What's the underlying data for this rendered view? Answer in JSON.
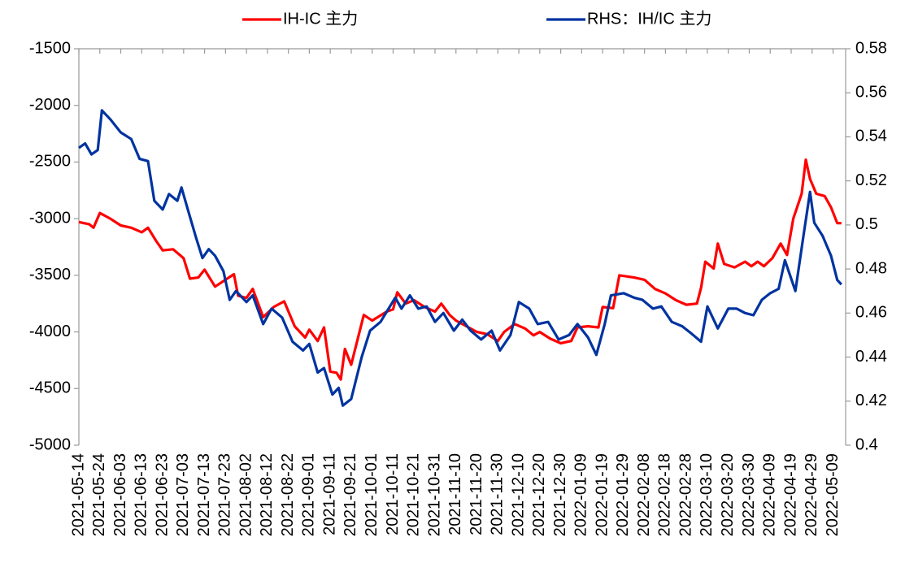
{
  "chart_data": {
    "type": "line",
    "legend_position": "top",
    "xlim": [
      "2021-05-14",
      "2022-05-15"
    ],
    "xticks": [
      "2021-05-14",
      "2021-05-24",
      "2021-06-03",
      "2021-06-13",
      "2021-06-23",
      "2021-07-03",
      "2021-07-13",
      "2021-07-23",
      "2021-08-02",
      "2021-08-12",
      "2021-08-22",
      "2021-09-01",
      "2021-09-11",
      "2021-09-21",
      "2021-10-01",
      "2021-10-11",
      "2021-10-21",
      "2021-10-31",
      "2021-11-10",
      "2021-11-20",
      "2021-11-30",
      "2021-12-10",
      "2021-12-20",
      "2021-12-30",
      "2022-01-09",
      "2022-01-19",
      "2022-01-29",
      "2022-02-08",
      "2022-02-18",
      "2022-02-28",
      "2022-03-10",
      "2022-03-20",
      "2022-03-30",
      "2022-04-09",
      "2022-04-19",
      "2022-04-29",
      "2022-05-09"
    ],
    "ylim": [
      -5000,
      -1500
    ],
    "yticks": [
      -5000,
      -4500,
      -4000,
      -3500,
      -3000,
      -2500,
      -2000,
      -1500
    ],
    "y2lim": [
      0.4,
      0.58
    ],
    "y2ticks": [
      0.4,
      0.42,
      0.44,
      0.46,
      0.48,
      0.5,
      0.52,
      0.54,
      0.56,
      0.58
    ],
    "series": [
      {
        "name": "IH-IC 主力",
        "color": "#ff0000",
        "axis": "y",
        "x": [
          "2021-05-14",
          "2021-05-19",
          "2021-05-21",
          "2021-05-24",
          "2021-05-29",
          "2021-06-03",
          "2021-06-08",
          "2021-06-13",
          "2021-06-16",
          "2021-06-20",
          "2021-06-23",
          "2021-06-28",
          "2021-07-03",
          "2021-07-06",
          "2021-07-10",
          "2021-07-13",
          "2021-07-18",
          "2021-07-27",
          "2021-07-29",
          "2021-08-02",
          "2021-08-05",
          "2021-08-10",
          "2021-08-15",
          "2021-08-20",
          "2021-08-25",
          "2021-08-30",
          "2021-09-01",
          "2021-09-05",
          "2021-09-08",
          "2021-09-11",
          "2021-09-14",
          "2021-09-16",
          "2021-09-18",
          "2021-09-21",
          "2021-09-27",
          "2021-10-01",
          "2021-10-08",
          "2021-10-11",
          "2021-10-13",
          "2021-10-17",
          "2021-10-21",
          "2021-10-26",
          "2021-10-31",
          "2021-11-03",
          "2021-11-07",
          "2021-11-10",
          "2021-11-15",
          "2021-11-20",
          "2021-11-25",
          "2021-11-30",
          "2021-12-03",
          "2021-12-08",
          "2021-12-13",
          "2021-12-17",
          "2021-12-20",
          "2021-12-25",
          "2021-12-30",
          "2022-01-04",
          "2022-01-07",
          "2022-01-12",
          "2022-01-17",
          "2022-01-19",
          "2022-01-24",
          "2022-01-27",
          "2022-02-03",
          "2022-02-08",
          "2022-02-13",
          "2022-02-18",
          "2022-02-23",
          "2022-02-28",
          "2022-03-05",
          "2022-03-07",
          "2022-03-09",
          "2022-03-13",
          "2022-03-15",
          "2022-03-18",
          "2022-03-23",
          "2022-03-28",
          "2022-03-31",
          "2022-04-03",
          "2022-04-06",
          "2022-04-10",
          "2022-04-14",
          "2022-04-17",
          "2022-04-20",
          "2022-04-24",
          "2022-04-26",
          "2022-04-28",
          "2022-05-01",
          "2022-05-05",
          "2022-05-08",
          "2022-05-11",
          "2022-05-13"
        ],
        "values": [
          -3030,
          -3050,
          -3080,
          -2950,
          -3000,
          -3060,
          -3080,
          -3120,
          -3080,
          -3200,
          -3280,
          -3270,
          -3350,
          -3530,
          -3520,
          -3450,
          -3600,
          -3490,
          -3680,
          -3700,
          -3620,
          -3870,
          -3780,
          -3730,
          -3950,
          -4050,
          -3980,
          -4080,
          -3960,
          -4350,
          -4360,
          -4420,
          -4150,
          -4290,
          -3850,
          -3900,
          -3820,
          -3800,
          -3650,
          -3750,
          -3720,
          -3780,
          -3820,
          -3750,
          -3850,
          -3900,
          -3950,
          -4000,
          -4020,
          -4080,
          -4000,
          -3930,
          -3970,
          -4030,
          -4000,
          -4060,
          -4100,
          -4080,
          -3960,
          -3950,
          -3960,
          -3780,
          -3790,
          -3500,
          -3520,
          -3540,
          -3620,
          -3660,
          -3720,
          -3760,
          -3750,
          -3610,
          -3380,
          -3440,
          -3220,
          -3400,
          -3430,
          -3380,
          -3420,
          -3380,
          -3420,
          -3350,
          -3220,
          -3320,
          -3000,
          -2780,
          -2480,
          -2650,
          -2780,
          -2800,
          -2900,
          -3040,
          -3040
        ]
      },
      {
        "name": "RHS：IH/IC 主力",
        "color": "#0033a0",
        "axis": "y2",
        "x": [
          "2021-05-14",
          "2021-05-17",
          "2021-05-20",
          "2021-05-23",
          "2021-05-25",
          "2021-05-29",
          "2021-06-03",
          "2021-06-08",
          "2021-06-12",
          "2021-06-16",
          "2021-06-19",
          "2021-06-23",
          "2021-06-26",
          "2021-06-30",
          "2021-07-02",
          "2021-07-05",
          "2021-07-09",
          "2021-07-12",
          "2021-07-15",
          "2021-07-18",
          "2021-07-22",
          "2021-07-25",
          "2021-07-28",
          "2021-08-02",
          "2021-08-05",
          "2021-08-10",
          "2021-08-14",
          "2021-08-19",
          "2021-08-24",
          "2021-08-29",
          "2021-09-01",
          "2021-09-05",
          "2021-09-08",
          "2021-09-12",
          "2021-09-15",
          "2021-09-17",
          "2021-09-21",
          "2021-09-26",
          "2021-09-30",
          "2021-10-05",
          "2021-10-12",
          "2021-10-15",
          "2021-10-19",
          "2021-10-23",
          "2021-10-27",
          "2021-10-31",
          "2021-11-04",
          "2021-11-09",
          "2021-11-13",
          "2021-11-17",
          "2021-11-22",
          "2021-11-27",
          "2021-12-01",
          "2021-12-06",
          "2021-12-10",
          "2021-12-15",
          "2021-12-19",
          "2021-12-24",
          "2021-12-29",
          "2022-01-03",
          "2022-01-07",
          "2022-01-12",
          "2022-01-16",
          "2022-01-20",
          "2022-01-23",
          "2022-01-29",
          "2022-02-03",
          "2022-02-07",
          "2022-02-12",
          "2022-02-16",
          "2022-02-21",
          "2022-02-26",
          "2022-03-02",
          "2022-03-07",
          "2022-03-10",
          "2022-03-15",
          "2022-03-20",
          "2022-03-24",
          "2022-03-28",
          "2022-04-01",
          "2022-04-05",
          "2022-04-09",
          "2022-04-13",
          "2022-04-16",
          "2022-04-21",
          "2022-04-25",
          "2022-04-28",
          "2022-04-30",
          "2022-05-04",
          "2022-05-08",
          "2022-05-11",
          "2022-05-13"
        ],
        "values": [
          0.535,
          0.537,
          0.532,
          0.534,
          0.552,
          0.548,
          0.542,
          0.539,
          0.53,
          0.529,
          0.511,
          0.507,
          0.514,
          0.511,
          0.517,
          0.507,
          0.494,
          0.485,
          0.489,
          0.486,
          0.479,
          0.466,
          0.47,
          0.465,
          0.468,
          0.455,
          0.462,
          0.458,
          0.447,
          0.443,
          0.446,
          0.433,
          0.435,
          0.423,
          0.426,
          0.418,
          0.421,
          0.44,
          0.452,
          0.456,
          0.467,
          0.462,
          0.468,
          0.462,
          0.463,
          0.456,
          0.46,
          0.452,
          0.457,
          0.452,
          0.448,
          0.452,
          0.443,
          0.45,
          0.465,
          0.462,
          0.455,
          0.456,
          0.448,
          0.45,
          0.455,
          0.449,
          0.441,
          0.455,
          0.468,
          0.469,
          0.467,
          0.466,
          0.462,
          0.463,
          0.456,
          0.454,
          0.451,
          0.447,
          0.463,
          0.453,
          0.462,
          0.462,
          0.46,
          0.459,
          0.466,
          0.469,
          0.471,
          0.484,
          0.47,
          0.496,
          0.515,
          0.501,
          0.495,
          0.486,
          0.475,
          0.473
        ]
      }
    ]
  }
}
